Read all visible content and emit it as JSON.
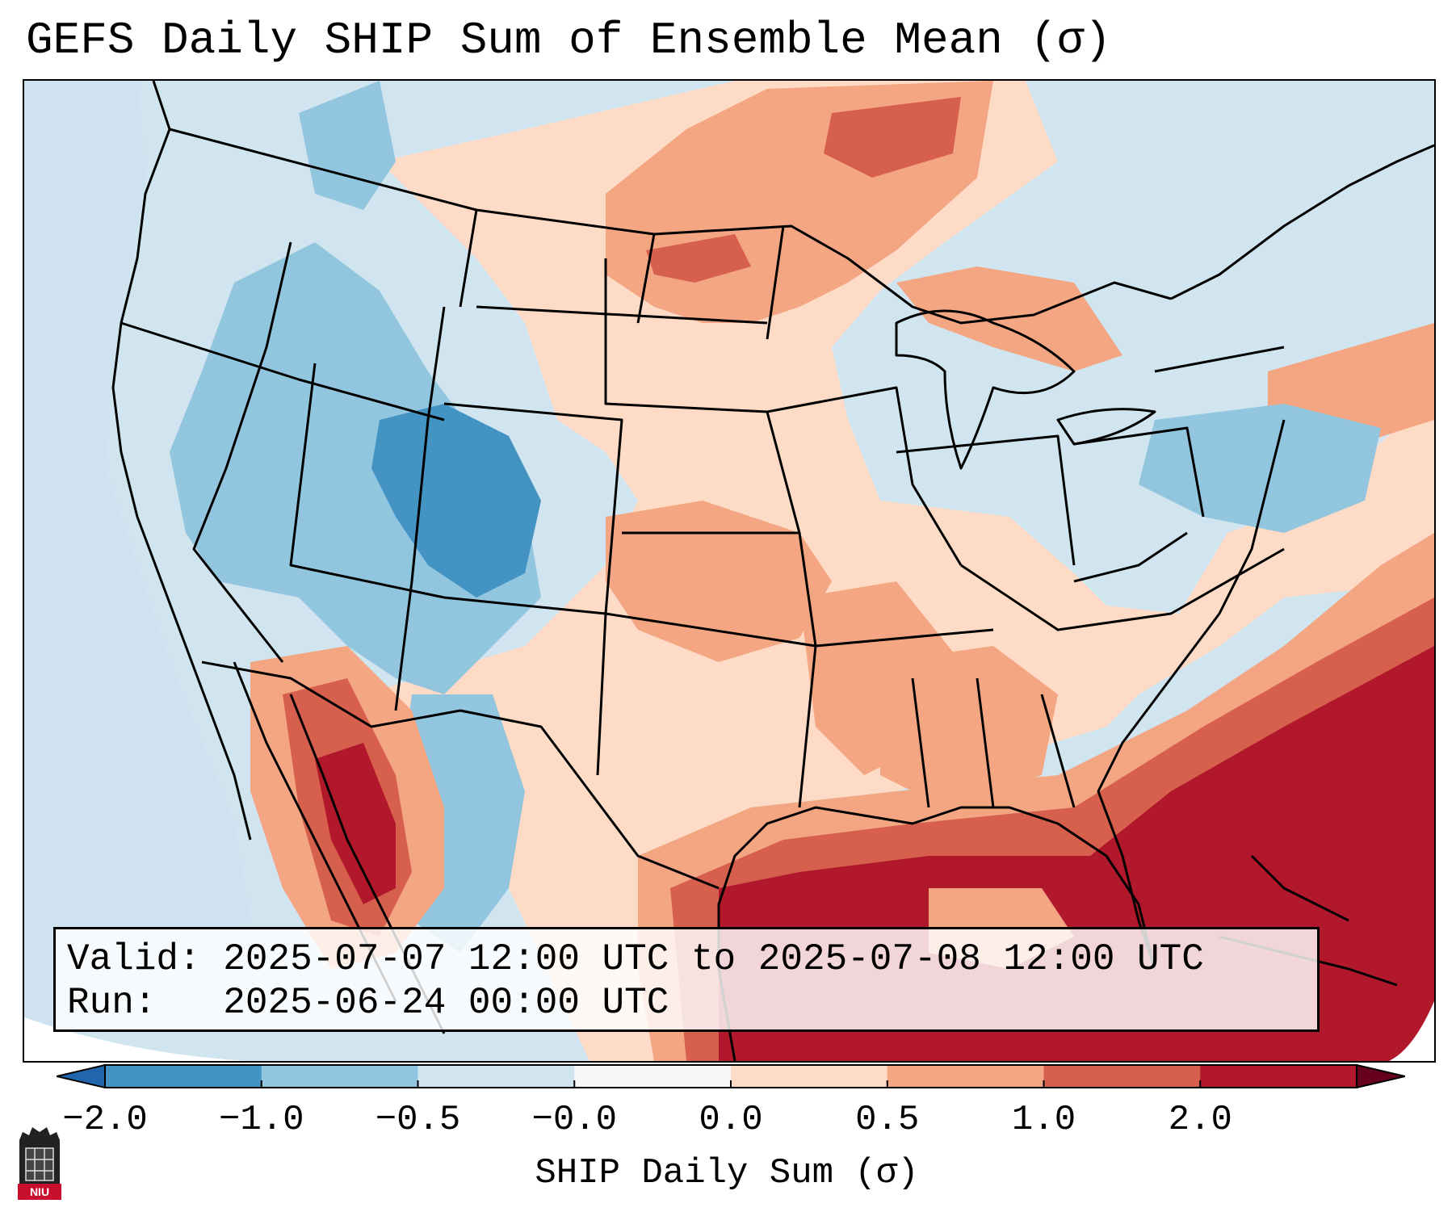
{
  "title": "GEFS Daily SHIP Sum of Ensemble Mean (σ)",
  "infobox": {
    "valid_label": "Valid:",
    "valid_value": "2025-07-07 12:00 UTC to 2025-07-08 12:00 UTC",
    "run_label": "Run:",
    "run_value": "2025-06-24 00:00 UTC"
  },
  "colorbar": {
    "label": "SHIP Daily Sum (σ)",
    "ticks": [
      "−2.0",
      "−1.0",
      "−0.5",
      "−0.0",
      "0.0",
      "0.5",
      "1.0",
      "2.0"
    ],
    "colors": [
      "#4393c3",
      "#92c5de",
      "#d1e5f0",
      "#f7f7f7",
      "#fddbc7",
      "#f4a582",
      "#d6604d",
      "#b2182b"
    ],
    "extend": "both"
  },
  "map": {
    "region": "CONUS",
    "legend_colors": {
      "ocean_pacific": "#cfe2ef",
      "gulf_atlantic": "#b2182b"
    }
  },
  "logo": {
    "text": "NIU",
    "icon": "niu-logo-icon"
  }
}
